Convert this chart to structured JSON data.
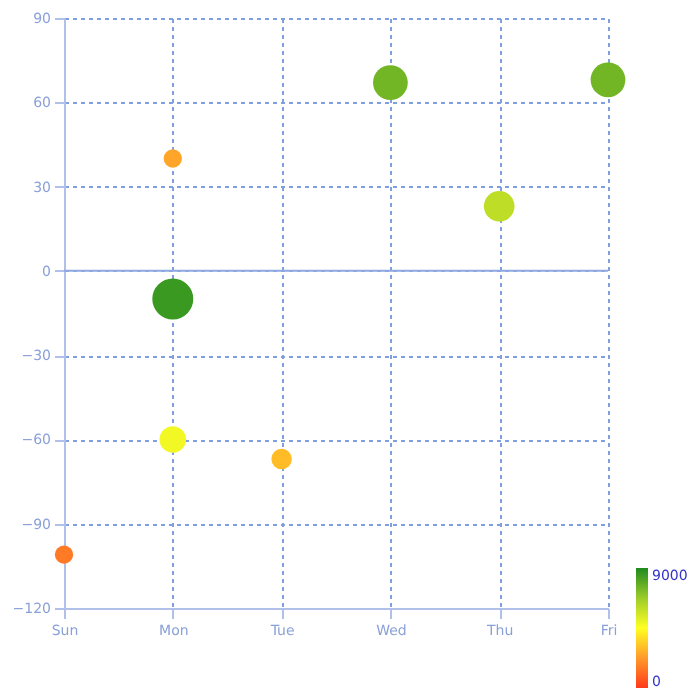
{
  "chart_data": {
    "type": "bubble",
    "categories": [
      "Sun",
      "Mon",
      "Tue",
      "Wed",
      "Thu",
      "Fri"
    ],
    "series": [
      {
        "x": [
          "Sun",
          "Mon",
          "Mon",
          "Mon",
          "Tue",
          "Wed",
          "Thu",
          "Fri"
        ],
        "values": [
          -101,
          40,
          -10,
          -60,
          -67,
          67,
          23,
          68
        ],
        "sizes": [
          0.2,
          0.2,
          1,
          0.42,
          0.25,
          0.72,
          0.56,
          0.72
        ],
        "cvalues": [
          1500,
          2500,
          8500,
          4800,
          3000,
          7500,
          6000,
          7500
        ]
      }
    ],
    "ylim": [
      -120,
      90
    ],
    "yticks": [
      -120,
      -90,
      -60,
      -30,
      0,
      30,
      60,
      90
    ],
    "clim": [
      0,
      9000
    ],
    "cticks": [
      0,
      9000
    ],
    "ref_lines": [
      {
        "axis": "y",
        "value": 0
      }
    ],
    "grid": true
  }
}
